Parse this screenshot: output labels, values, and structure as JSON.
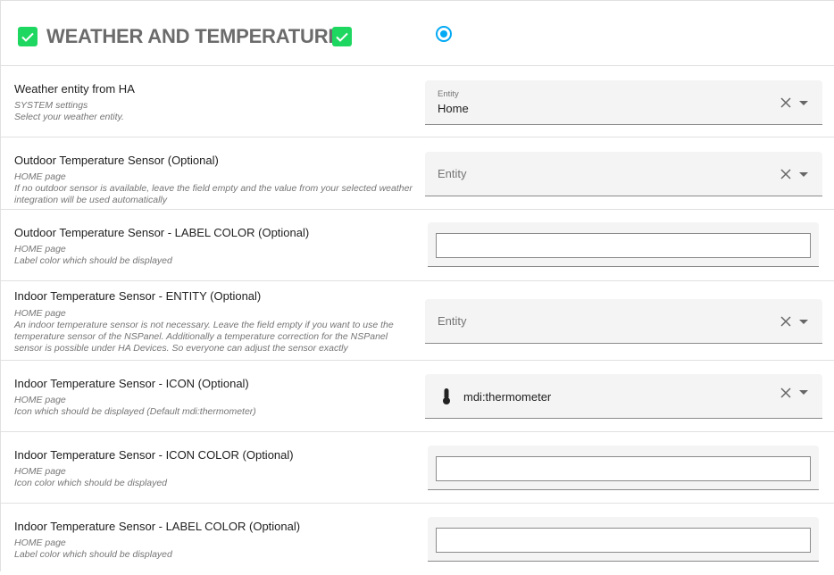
{
  "header": {
    "title": "WEATHER AND TEMPERATURE",
    "accent": "#1ed760",
    "radio_color": "#03a9f4",
    "radio_selected": true
  },
  "rows": [
    {
      "label": "Weather entity from HA",
      "desc": [
        "SYSTEM settings",
        "Select your weather entity."
      ],
      "field": {
        "type": "entity",
        "floating_label": "Entity",
        "value": "Home"
      }
    },
    {
      "label": "Outdoor Temperature Sensor (Optional)",
      "desc": [
        "HOME page",
        "If no outdoor sensor is available, leave the field empty and the value from your selected weather integration will be used automatically"
      ],
      "field": {
        "type": "entity",
        "placeholder": "Entity"
      }
    },
    {
      "label": "Outdoor Temperature Sensor - LABEL COLOR (Optional)",
      "desc": [
        "HOME page",
        "Label color which should be displayed"
      ],
      "field": {
        "type": "color",
        "value": ""
      }
    },
    {
      "label": "Indoor Temperature Sensor - ENTITY (Optional)",
      "desc": [
        "HOME page",
        "An indoor temperature sensor is not necessary. Leave the field empty if you want to use the temperature sensor of the NSPanel. Additionally a temperature correction for the NSPanel sensor is possible under HA Devices. So everyone can adjust the sensor exactly"
      ],
      "field": {
        "type": "entity",
        "placeholder": "Entity"
      }
    },
    {
      "label": "Indoor Temperature Sensor - ICON (Optional)",
      "desc": [
        "HOME page",
        "Icon which should be displayed (Default mdi:thermometer)"
      ],
      "field": {
        "type": "icon",
        "value": "mdi:thermometer",
        "icon": "thermometer-icon"
      }
    },
    {
      "label": "Indoor Temperature Sensor - ICON COLOR (Optional)",
      "desc": [
        "HOME page",
        "Icon color which should be displayed"
      ],
      "field": {
        "type": "color",
        "value": ""
      }
    },
    {
      "label": "Indoor Temperature Sensor - LABEL COLOR (Optional)",
      "desc": [
        "HOME page",
        "Label color which should be displayed"
      ],
      "field": {
        "type": "color",
        "value": ""
      }
    }
  ]
}
